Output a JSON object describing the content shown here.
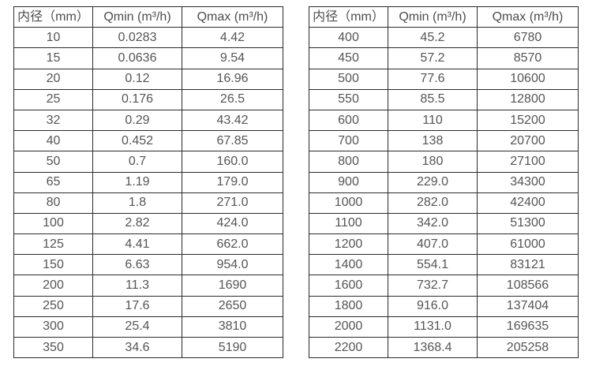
{
  "colors": {
    "background": "#ffffff",
    "border": "#2b2b2b",
    "text": "#555555"
  },
  "tables": [
    {
      "name": "flow-table-small-diameters",
      "headers": [
        "内径（mm）",
        "Qmin (m³/h)",
        "Qmax (m³/h)"
      ],
      "rows": [
        [
          "10",
          "0.0283",
          "4.42"
        ],
        [
          "15",
          "0.0636",
          "9.54"
        ],
        [
          "20",
          "0.12",
          "16.96"
        ],
        [
          "25",
          "0.176",
          "26.5"
        ],
        [
          "32",
          "0.29",
          "43.42"
        ],
        [
          "40",
          "0.452",
          "67.85"
        ],
        [
          "50",
          "0.7",
          "160.0"
        ],
        [
          "65",
          "1.19",
          "179.0"
        ],
        [
          "80",
          "1.8",
          "271.0"
        ],
        [
          "100",
          "2.82",
          "424.0"
        ],
        [
          "125",
          "4.41",
          "662.0"
        ],
        [
          "150",
          "6.63",
          "954.0"
        ],
        [
          "200",
          "11.3",
          "1690"
        ],
        [
          "250",
          "17.6",
          "2650"
        ],
        [
          "300",
          "25.4",
          "3810"
        ],
        [
          "350",
          "34.6",
          "5190"
        ]
      ]
    },
    {
      "name": "flow-table-large-diameters",
      "headers": [
        "内径（mm）",
        "Qmin (m³/h)",
        "Qmax (m³/h)"
      ],
      "rows": [
        [
          "400",
          "45.2",
          "6780"
        ],
        [
          "450",
          "57.2",
          "8570"
        ],
        [
          "500",
          "77.6",
          "10600"
        ],
        [
          "550",
          "85.5",
          "12800"
        ],
        [
          "600",
          "110",
          "15200"
        ],
        [
          "700",
          "138",
          "20700"
        ],
        [
          "800",
          "180",
          "27100"
        ],
        [
          "900",
          "229.0",
          "34300"
        ],
        [
          "1000",
          "282.0",
          "42400"
        ],
        [
          "1100",
          "342.0",
          "51300"
        ],
        [
          "1200",
          "407.0",
          "61000"
        ],
        [
          "1400",
          "554.1",
          "83121"
        ],
        [
          "1600",
          "732.7",
          "108566"
        ],
        [
          "1800",
          "916.0",
          "137404"
        ],
        [
          "2000",
          "1131.0",
          "169635"
        ],
        [
          "2200",
          "1368.4",
          "205258"
        ]
      ]
    }
  ]
}
